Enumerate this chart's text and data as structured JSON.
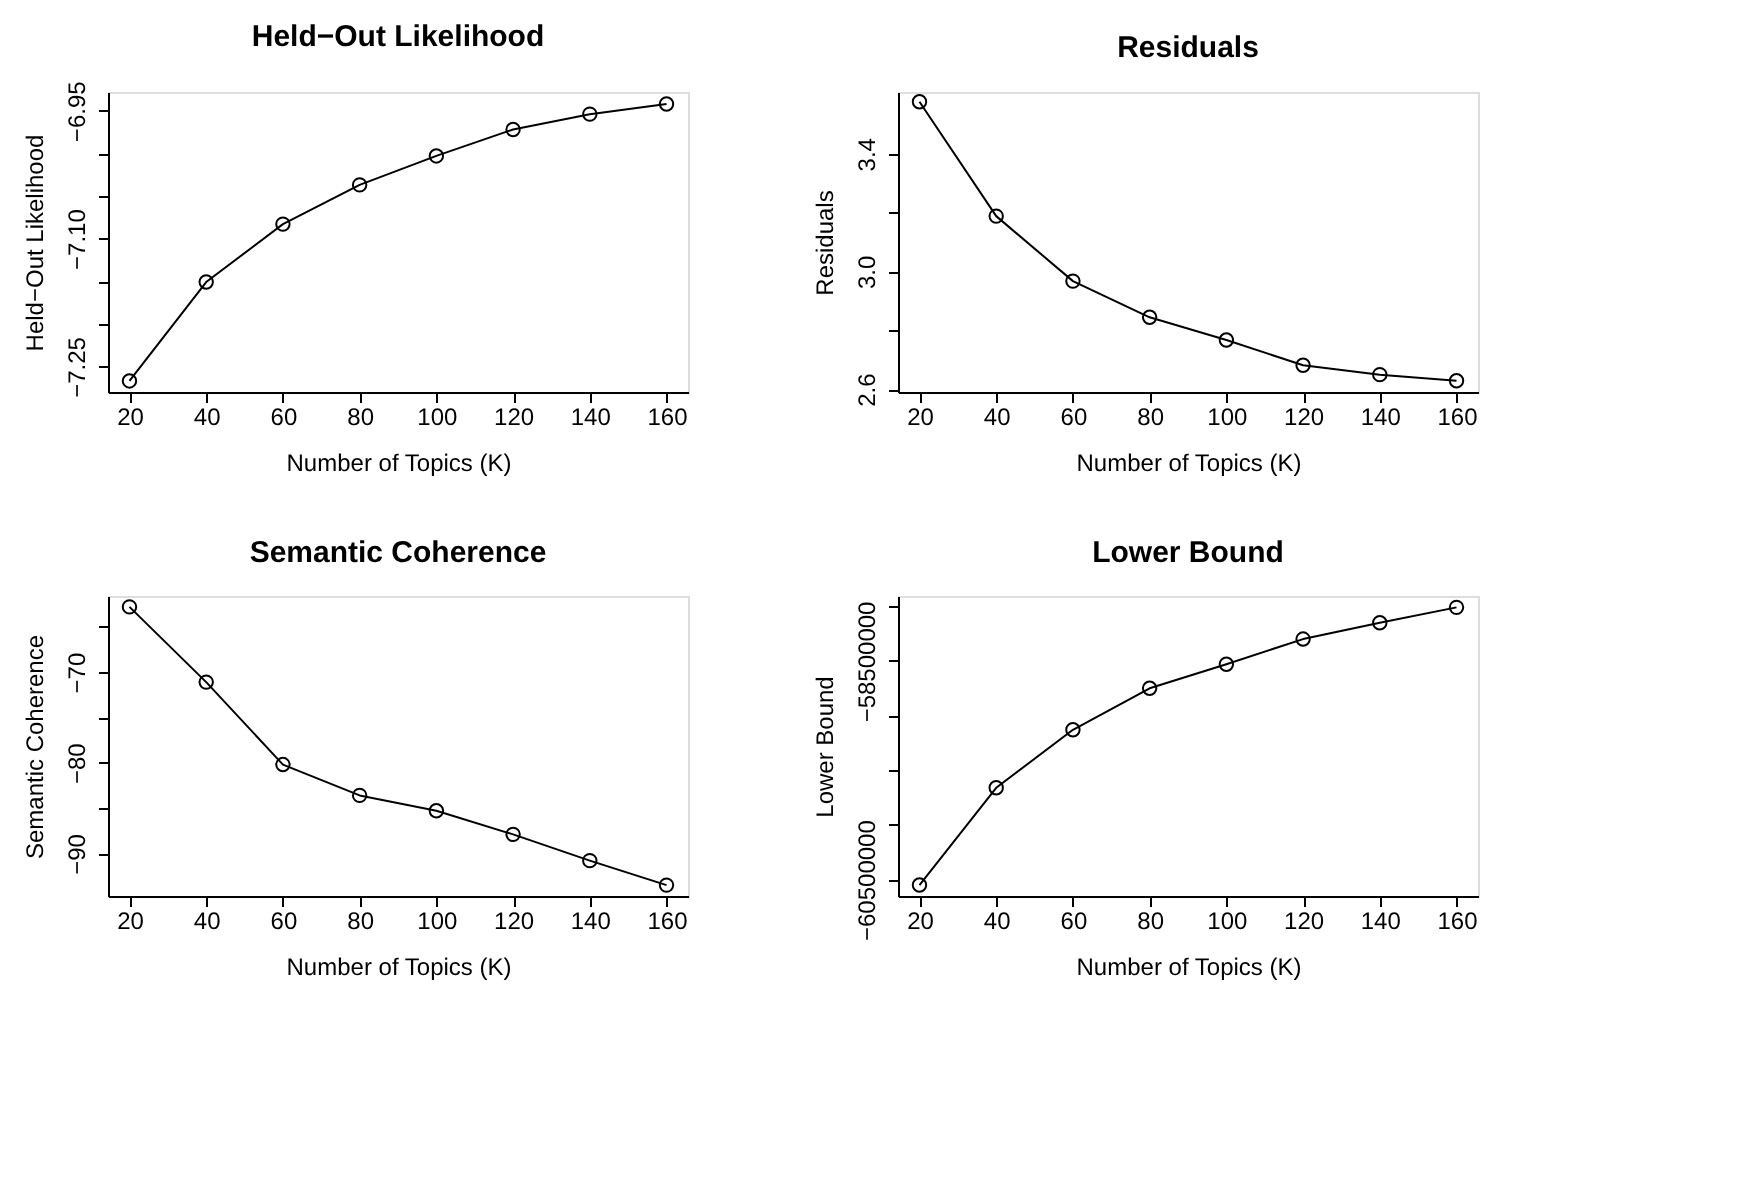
{
  "chart_data": [
    {
      "type": "line",
      "title": "Held−Out Likelihood",
      "xlabel": "Number of Topics (K)",
      "ylabel": "Held−Out Likelihood",
      "x": [
        20,
        40,
        60,
        80,
        100,
        120,
        140,
        160
      ],
      "series": [
        {
          "color": "#000000",
          "values": [
            -7.267,
            -7.151,
            -7.083,
            -7.037,
            -7.003,
            -6.972,
            -6.954,
            -6.942
          ]
        }
      ],
      "xlim": [
        14.4,
        165.6
      ],
      "xticks": [
        20,
        40,
        60,
        80,
        100,
        120,
        140,
        160
      ],
      "ylim": [
        -7.28,
        -6.928
      ],
      "yticks": [
        {
          "value": -7.25,
          "label": "−7.25"
        },
        {
          "value": -7.2,
          "label": null
        },
        {
          "value": -7.15,
          "label": null
        },
        {
          "value": -7.1,
          "label": "−7.10"
        },
        {
          "value": -7.05,
          "label": null
        },
        {
          "value": -7.0,
          "label": null
        },
        {
          "value": -6.95,
          "label": "−6.95"
        }
      ],
      "grid": false,
      "legend": false,
      "marker": "circle",
      "line_style": "solid"
    },
    {
      "type": "line",
      "title": "Residuals",
      "xlabel": "Number of Topics (K)",
      "ylabel": "Residuals",
      "x": [
        20,
        40,
        60,
        80,
        100,
        120,
        140,
        160
      ],
      "series": [
        {
          "color": "#000000",
          "values": [
            3.577,
            3.188,
            2.967,
            2.844,
            2.767,
            2.681,
            2.649,
            2.628
          ]
        }
      ],
      "xlim": [
        14.4,
        165.6
      ],
      "xticks": [
        20,
        40,
        60,
        80,
        100,
        120,
        140,
        160
      ],
      "ylim": [
        2.59,
        3.61
      ],
      "yticks": [
        {
          "value": 2.6,
          "label": "2.6"
        },
        {
          "value": 2.8,
          "label": null
        },
        {
          "value": 3.0,
          "label": "3.0"
        },
        {
          "value": 3.2,
          "label": null
        },
        {
          "value": 3.4,
          "label": "3.4"
        }
      ],
      "grid": false,
      "legend": false,
      "marker": "circle",
      "line_style": "solid"
    },
    {
      "type": "line",
      "title": "Semantic Coherence",
      "xlabel": "Number of Topics (K)",
      "ylabel": "Semantic Coherence",
      "x": [
        20,
        40,
        60,
        80,
        100,
        120,
        140,
        160
      ],
      "series": [
        {
          "color": "#000000",
          "values": [
            -62.8,
            -71.1,
            -80.2,
            -83.6,
            -85.3,
            -87.9,
            -90.8,
            -93.5
          ]
        }
      ],
      "xlim": [
        14.4,
        165.6
      ],
      "xticks": [
        20,
        40,
        60,
        80,
        100,
        120,
        140,
        160
      ],
      "ylim": [
        -94.7,
        -61.6
      ],
      "yticks": [
        {
          "value": -90,
          "label": "−90"
        },
        {
          "value": -85,
          "label": null
        },
        {
          "value": -80,
          "label": "−80"
        },
        {
          "value": -75,
          "label": null
        },
        {
          "value": -70,
          "label": "−70"
        },
        {
          "value": -65,
          "label": null
        }
      ],
      "grid": false,
      "legend": false,
      "marker": "circle",
      "line_style": "solid"
    },
    {
      "type": "line",
      "title": "Lower Bound",
      "xlabel": "Number of Topics (K)",
      "ylabel": "Lower Bound",
      "x": [
        20,
        40,
        60,
        80,
        100,
        120,
        140,
        160
      ],
      "series": [
        {
          "color": "#000000",
          "values": [
            -60550000,
            -59660000,
            -59130000,
            -58750000,
            -58530000,
            -58300000,
            -58150000,
            -58010000
          ]
        }
      ],
      "xlim": [
        14.4,
        165.6
      ],
      "xticks": [
        20,
        40,
        60,
        80,
        100,
        120,
        140,
        160
      ],
      "ylim": [
        -60650000,
        -57906000
      ],
      "yticks": [
        {
          "value": -60500000,
          "label": "−60500000"
        },
        {
          "value": -60000000,
          "label": null
        },
        {
          "value": -59500000,
          "label": null
        },
        {
          "value": -59000000,
          "label": null
        },
        {
          "value": -58500000,
          "label": "−58500000"
        },
        {
          "value": -58000000,
          "label": null
        }
      ],
      "grid": false,
      "legend": false,
      "marker": "circle",
      "line_style": "solid"
    }
  ]
}
